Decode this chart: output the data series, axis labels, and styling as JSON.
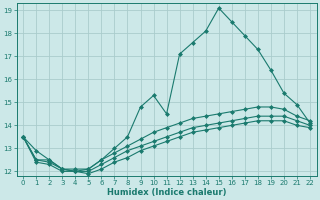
{
  "xlabel": "Humidex (Indice chaleur)",
  "xlim": [
    -0.5,
    22.5
  ],
  "ylim": [
    11.8,
    19.3
  ],
  "xticks": [
    0,
    1,
    2,
    3,
    4,
    5,
    6,
    7,
    8,
    9,
    10,
    11,
    12,
    13,
    14,
    15,
    16,
    17,
    18,
    19,
    20,
    21,
    22
  ],
  "yticks": [
    12,
    13,
    14,
    15,
    16,
    17,
    18,
    19
  ],
  "bg_color": "#cce8e8",
  "grid_color": "#aacccc",
  "line_color": "#1a7a6e",
  "line_width": 0.8,
  "marker": "D",
  "marker_size": 2.0,
  "lines": [
    [
      13.5,
      12.9,
      12.5,
      12.1,
      12.0,
      12.1,
      12.5,
      13.0,
      13.5,
      14.8,
      15.3,
      14.5,
      17.1,
      17.6,
      18.1,
      19.1,
      18.5,
      17.9,
      17.3,
      16.4,
      15.4,
      14.9,
      14.1
    ],
    [
      13.5,
      12.5,
      12.5,
      12.1,
      12.1,
      12.1,
      12.5,
      12.8,
      13.1,
      13.4,
      13.7,
      13.9,
      14.1,
      14.3,
      14.4,
      14.5,
      14.6,
      14.7,
      14.8,
      14.8,
      14.7,
      14.4,
      14.2
    ],
    [
      13.5,
      12.5,
      12.4,
      12.1,
      12.0,
      12.0,
      12.3,
      12.6,
      12.9,
      13.1,
      13.3,
      13.5,
      13.7,
      13.9,
      14.0,
      14.1,
      14.2,
      14.3,
      14.4,
      14.4,
      14.4,
      14.2,
      14.0
    ],
    [
      13.5,
      12.4,
      12.3,
      12.0,
      12.0,
      11.9,
      12.1,
      12.4,
      12.6,
      12.9,
      13.1,
      13.3,
      13.5,
      13.7,
      13.8,
      13.9,
      14.0,
      14.1,
      14.2,
      14.2,
      14.2,
      14.0,
      13.9
    ]
  ]
}
